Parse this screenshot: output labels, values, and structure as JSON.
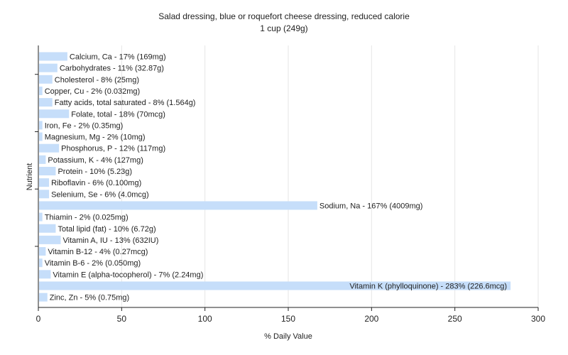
{
  "chart_data": {
    "type": "bar",
    "orientation": "horizontal",
    "title": "Salad dressing, blue or roquefort cheese dressing, reduced calorie",
    "subtitle": "1 cup (249g)",
    "xlabel": "% Daily Value",
    "ylabel": "Nutrient",
    "xlim": [
      0,
      300
    ],
    "xticks": [
      0,
      50,
      100,
      150,
      200,
      250,
      300
    ],
    "grid": true,
    "bar_color": "#c6defa",
    "grid_color": "#e6e6e6",
    "axis_color": "#222222",
    "categories": [
      "Calcium, Ca - 17% (169mg)",
      "Carbohydrates - 11% (32.87g)",
      "Cholesterol - 8% (25mg)",
      "Copper, Cu - 2% (0.032mg)",
      "Fatty acids, total saturated - 8% (1.564g)",
      "Folate, total - 18% (70mcg)",
      "Iron, Fe - 2% (0.35mg)",
      "Magnesium, Mg - 2% (10mg)",
      "Phosphorus, P - 12% (117mg)",
      "Potassium, K - 4% (127mg)",
      "Protein - 10% (5.23g)",
      "Riboflavin - 6% (0.100mg)",
      "Selenium, Se - 6% (4.0mcg)",
      "Sodium, Na - 167% (4009mg)",
      "Thiamin - 2% (0.025mg)",
      "Total lipid (fat) - 10% (6.72g)",
      "Vitamin A, IU - 13% (632IU)",
      "Vitamin B-12 - 4% (0.27mcg)",
      "Vitamin B-6 - 2% (0.050mg)",
      "Vitamin E (alpha-tocopherol) - 7% (2.24mg)",
      "Vitamin K (phylloquinone) - 283% (226.6mcg)",
      "Zinc, Zn - 5% (0.75mg)"
    ],
    "values": [
      17,
      11,
      8,
      2,
      8,
      18,
      2,
      2,
      12,
      4,
      10,
      6,
      6,
      167,
      2,
      10,
      13,
      4,
      2,
      7,
      283,
      5
    ]
  }
}
